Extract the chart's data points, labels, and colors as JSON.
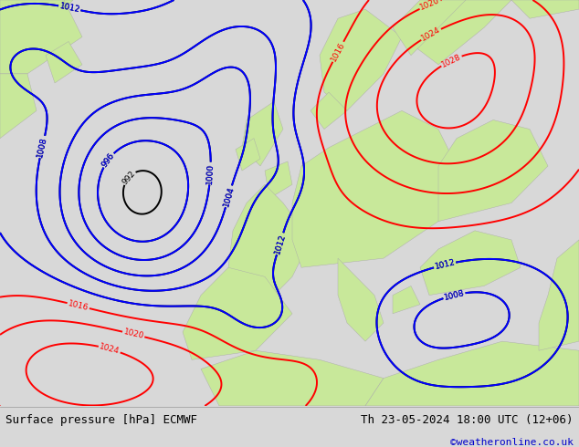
{
  "title_left": "Surface pressure [hPa] ECMWF",
  "title_right": "Th 23-05-2024 18:00 UTC (12+06)",
  "copyright": "©weatheronline.co.uk",
  "ocean_color": "#e8e8e8",
  "land_color": "#c8e89a",
  "footer_bg": "#d8d8d8",
  "font_color_left": "#000000",
  "font_color_right": "#000000",
  "font_color_copy": "#0000cc",
  "figsize": [
    6.34,
    4.9
  ],
  "dpi": 100,
  "contour_interval": 4,
  "pmin": 984,
  "pmax": 1032,
  "black_max": 1013,
  "blue_min": 996,
  "blue_max": 1012,
  "red_min": 1016
}
